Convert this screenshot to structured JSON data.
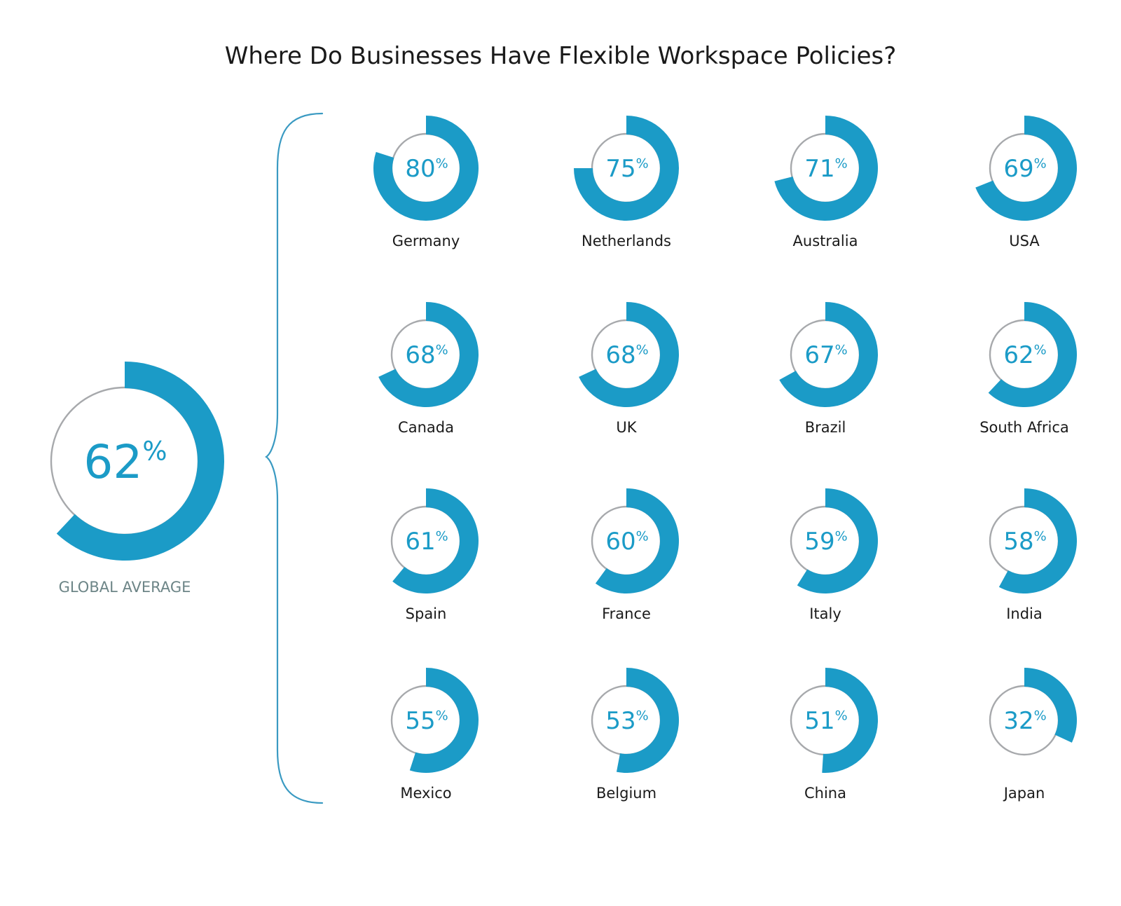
{
  "chart_data": {
    "type": "donut-grid",
    "title": "Where Do Businesses Have Flexible Workspace Policies?",
    "unit": "%",
    "colors": {
      "filled": "#1b9bc7",
      "track": "#a7a9ac",
      "bracket": "#3a9ac2",
      "text": "#1a1a1a",
      "global_label": "#6d8587"
    },
    "global": {
      "label": "GLOBAL AVERAGE",
      "value": 62
    },
    "countries": [
      {
        "name": "Germany",
        "value": 80
      },
      {
        "name": "Netherlands",
        "value": 75
      },
      {
        "name": "Australia",
        "value": 71
      },
      {
        "name": "USA",
        "value": 69
      },
      {
        "name": "Canada",
        "value": 68
      },
      {
        "name": "UK",
        "value": 68
      },
      {
        "name": "Brazil",
        "value": 67
      },
      {
        "name": "South Africa",
        "value": 62
      },
      {
        "name": "Spain",
        "value": 61
      },
      {
        "name": "France",
        "value": 60
      },
      {
        "name": "Italy",
        "value": 59
      },
      {
        "name": "India",
        "value": 58
      },
      {
        "name": "Mexico",
        "value": 55
      },
      {
        "name": "Belgium",
        "value": 53
      },
      {
        "name": "China",
        "value": 51
      },
      {
        "name": "Japan",
        "value": 32
      }
    ]
  }
}
